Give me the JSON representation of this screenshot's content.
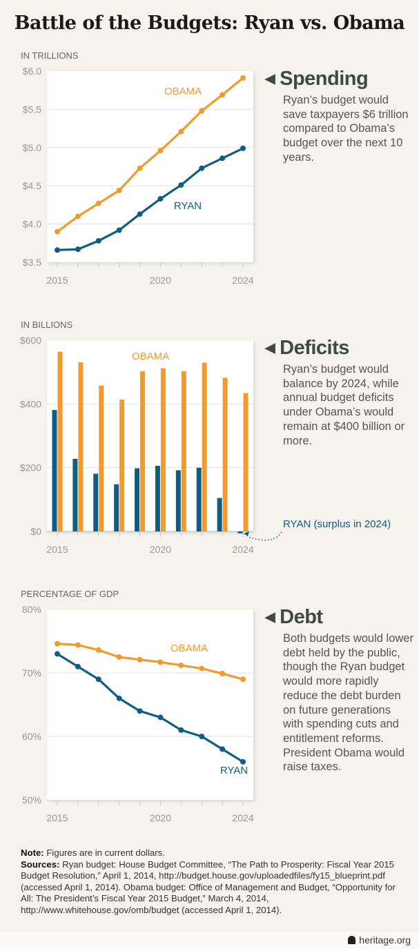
{
  "title": "Battle of the Budgets: Ryan vs. Obama",
  "colors": {
    "obama": "#f39a2b",
    "ryan": "#0f5c85",
    "background": "#f5f3ec"
  },
  "side": {
    "spending": {
      "heading": "Spending",
      "body": "Ryan’s budget would save taxpayers $6 trillion compared to Obama’s budget over the next 10 years."
    },
    "deficits": {
      "heading": "Deficits",
      "body": "Ryan’s budget would balance by 2024, while annual budget deficits under Obama’s would remain at $400 billion or more.",
      "ryan_label": "RYAN (surplus in 2024)"
    },
    "debt": {
      "heading": "Debt",
      "body": "Both budgets would lower debt held by the public, though the Ryan budget would more rapidly reduce the debt burden on future generations with spending cuts and entitlement reforms. President Obama would raise taxes."
    }
  },
  "footer": {
    "note_label": "Note:",
    "note": "Figures are in current dollars.",
    "sources_label": "Sources:",
    "sources": "Ryan budget: House Budget Committee, “The Path to Prosperity: Fiscal Year 2015 Budget Resolution,” April 1, 2014, http://budget.house.gov/uploadedfiles/fy15_blueprint.pdf (accessed April 1, 2014). Obama budget: Office of Management and Budget, “Opportunity for All: The President’s Fiscal Year 2015 Budget,” March 4, 2014, http://www.whitehouse.gov/omb/budget (accessed April 1, 2014).",
    "brand": "heritage.org"
  },
  "chart_data": [
    {
      "type": "line",
      "ylabel": "IN TRILLIONS",
      "x": [
        2015,
        2016,
        2017,
        2018,
        2019,
        2020,
        2021,
        2022,
        2023,
        2024
      ],
      "xticks": [
        "2015",
        "2020",
        "2024"
      ],
      "ylim": [
        3.5,
        6.0
      ],
      "yticks": [
        {
          "v": 6.0,
          "label": "$6.0"
        },
        {
          "v": 5.5,
          "label": "$5.5"
        },
        {
          "v": 5.0,
          "label": "$5.0"
        },
        {
          "v": 4.5,
          "label": "$4.5"
        },
        {
          "v": 4.0,
          "label": "$4.0"
        },
        {
          "v": 3.5,
          "label": "$3.5"
        }
      ],
      "grid": true,
      "series": [
        {
          "name": "OBAMA",
          "values": [
            3.9,
            4.1,
            4.27,
            4.44,
            4.73,
            4.96,
            5.21,
            5.48,
            5.69,
            5.91
          ]
        },
        {
          "name": "RYAN",
          "values": [
            3.66,
            3.67,
            3.78,
            3.92,
            4.13,
            4.33,
            4.51,
            4.73,
            4.86,
            4.99
          ]
        }
      ]
    },
    {
      "type": "bar",
      "ylabel": "IN BILLIONS",
      "x": [
        2015,
        2016,
        2017,
        2018,
        2019,
        2020,
        2021,
        2022,
        2023,
        2024
      ],
      "xticks": [
        "2015",
        "2020",
        "2024"
      ],
      "ylim": [
        0,
        600
      ],
      "yticks": [
        {
          "v": 600,
          "label": "$600"
        },
        {
          "v": 400,
          "label": "$400"
        },
        {
          "v": 200,
          "label": "$200"
        },
        {
          "v": 0,
          "label": "$0"
        }
      ],
      "grid": true,
      "series": [
        {
          "name": "RYAN",
          "values": [
            381,
            228,
            181,
            148,
            198,
            206,
            192,
            200,
            105,
            -6
          ]
        },
        {
          "name": "OBAMA",
          "values": [
            564,
            531,
            458,
            414,
            503,
            512,
            503,
            530,
            482,
            434
          ]
        }
      ]
    },
    {
      "type": "line",
      "ylabel": "PERCENTAGE OF GDP",
      "x": [
        2015,
        2016,
        2017,
        2018,
        2019,
        2020,
        2021,
        2022,
        2023,
        2024
      ],
      "xticks": [
        "2015",
        "2020",
        "2024"
      ],
      "ylim": [
        50,
        80
      ],
      "yticks": [
        {
          "v": 80,
          "label": "80%"
        },
        {
          "v": 70,
          "label": "70%"
        },
        {
          "v": 60,
          "label": "60%"
        },
        {
          "v": 50,
          "label": "50%"
        }
      ],
      "grid": true,
      "series": [
        {
          "name": "OBAMA",
          "values": [
            74.6,
            74.4,
            73.6,
            72.5,
            72.1,
            71.7,
            71.2,
            70.7,
            69.9,
            69.0
          ]
        },
        {
          "name": "RYAN",
          "values": [
            73.0,
            71.0,
            69.0,
            66.0,
            64.0,
            63.0,
            61.0,
            60.0,
            58.0,
            56.0
          ]
        }
      ]
    }
  ]
}
